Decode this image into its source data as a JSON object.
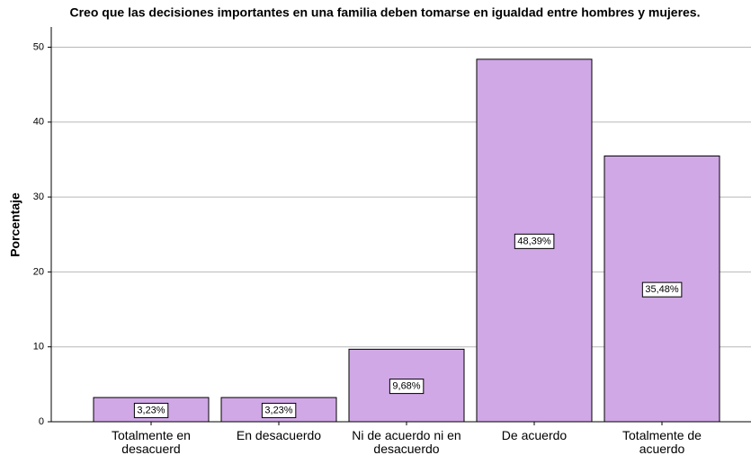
{
  "chart_data": {
    "type": "bar",
    "title": "Creo que las decisiones importantes en una familia deben tomarse en igualdad entre hombres y mujeres.",
    "y_label": "Porcentaje",
    "categories": [
      "Totalmente en desacuerd",
      "En desacuerdo",
      "Ni de acuerdo ni en desacuerdo",
      "De acuerdo",
      "Totalmente de acuerdo"
    ],
    "values": [
      3.23,
      3.23,
      9.68,
      48.39,
      35.48
    ],
    "value_labels": [
      "3,23%",
      "3,23%",
      "9,68%",
      "48,39%",
      "35,48%"
    ],
    "color": "#d0a8e6",
    "ylim": [
      0,
      52.7
    ],
    "yticks": [
      0,
      10,
      20,
      30,
      40,
      50
    ],
    "grid": true
  }
}
